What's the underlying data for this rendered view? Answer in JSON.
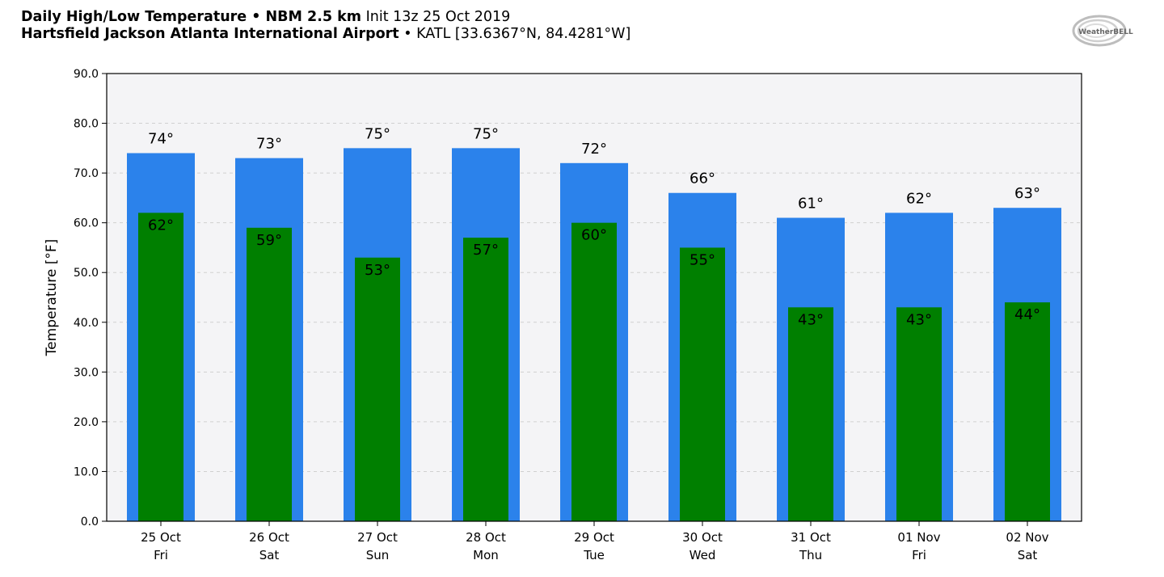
{
  "header": {
    "line1_bold": "Daily High/Low Temperature • NBM 2.5 km",
    "line1_normal": "Init 13z 25 Oct 2019",
    "line2_bold": "Hartsfield Jackson Atlanta International Airport",
    "line2_normal": "• KATL [33.6367°N, 84.4281°W]"
  },
  "logo": {
    "text": "WeatherBELL",
    "icon": "weatherbell-swirl-logo"
  },
  "colors": {
    "high": "#2b82eb",
    "low": "#007f00",
    "plot_bg": "#f4f4f6",
    "grid": "#d0d0d0"
  },
  "chart_data": {
    "type": "bar",
    "ylabel": "Temperature [°F]",
    "xlabel": "",
    "ylim": [
      0,
      90
    ],
    "yticks": [
      "0.0",
      "10.0",
      "20.0",
      "30.0",
      "40.0",
      "50.0",
      "60.0",
      "70.0",
      "80.0",
      "90.0"
    ],
    "grid": true,
    "categories": [
      [
        "25 Oct",
        "Fri"
      ],
      [
        "26 Oct",
        "Sat"
      ],
      [
        "27 Oct",
        "Sun"
      ],
      [
        "28 Oct",
        "Mon"
      ],
      [
        "29 Oct",
        "Tue"
      ],
      [
        "30 Oct",
        "Wed"
      ],
      [
        "31 Oct",
        "Thu"
      ],
      [
        "01 Nov",
        "Fri"
      ],
      [
        "02 Nov",
        "Sat"
      ]
    ],
    "series": [
      {
        "values": [
          74,
          73,
          75,
          75,
          72,
          66,
          61,
          62,
          63
        ],
        "labels": [
          "74°",
          "73°",
          "75°",
          "75°",
          "72°",
          "66°",
          "61°",
          "62°",
          "63°"
        ]
      },
      {
        "values": [
          62,
          59,
          53,
          57,
          60,
          55,
          43,
          43,
          44
        ],
        "labels": [
          "62°",
          "59°",
          "53°",
          "57°",
          "60°",
          "55°",
          "43°",
          "43°",
          "44°"
        ]
      }
    ]
  }
}
